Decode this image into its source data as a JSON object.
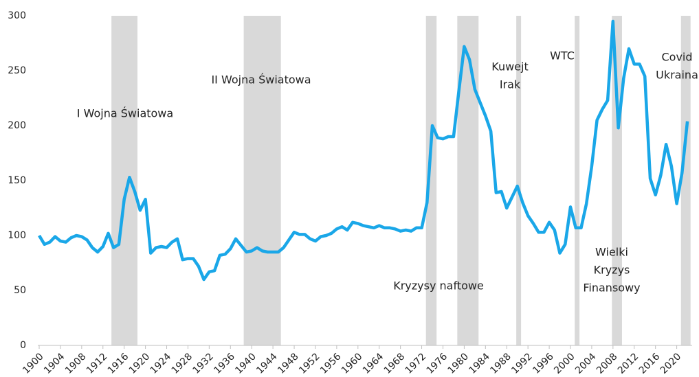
{
  "chart_data": {
    "type": "line",
    "x": [
      1900,
      1901,
      1902,
      1903,
      1904,
      1905,
      1906,
      1907,
      1908,
      1909,
      1910,
      1911,
      1912,
      1913,
      1914,
      1915,
      1916,
      1917,
      1918,
      1919,
      1920,
      1921,
      1922,
      1923,
      1924,
      1925,
      1926,
      1927,
      1928,
      1929,
      1930,
      1931,
      1932,
      1933,
      1934,
      1935,
      1936,
      1937,
      1938,
      1939,
      1940,
      1941,
      1942,
      1943,
      1944,
      1945,
      1946,
      1947,
      1948,
      1949,
      1950,
      1951,
      1952,
      1953,
      1954,
      1955,
      1956,
      1957,
      1958,
      1959,
      1960,
      1961,
      1962,
      1963,
      1964,
      1965,
      1966,
      1967,
      1968,
      1969,
      1970,
      1971,
      1972,
      1973,
      1974,
      1975,
      1976,
      1977,
      1978,
      1979,
      1980,
      1981,
      1982,
      1983,
      1984,
      1985,
      1986,
      1987,
      1988,
      1989,
      1990,
      1991,
      1992,
      1993,
      1994,
      1995,
      1996,
      1997,
      1998,
      1999,
      2000,
      2001,
      2002,
      2003,
      2004,
      2005,
      2006,
      2007,
      2008,
      2009,
      2010,
      2011,
      2012,
      2013,
      2014,
      2015,
      2016,
      2017,
      2018,
      2019,
      2020,
      2021,
      2022
    ],
    "values": [
      100,
      92,
      94,
      99,
      95,
      94,
      98,
      100,
      99,
      96,
      89,
      85,
      90,
      102,
      89,
      92,
      133,
      153,
      140,
      123,
      133,
      84,
      89,
      90,
      89,
      94,
      97,
      78,
      79,
      79,
      72,
      60,
      67,
      68,
      82,
      83,
      88,
      97,
      91,
      85,
      86,
      89,
      86,
      85,
      85,
      85,
      89,
      96,
      103,
      101,
      101,
      97,
      95,
      99,
      100,
      102,
      106,
      108,
      105,
      112,
      111,
      109,
      108,
      107,
      109,
      107,
      107,
      106,
      104,
      105,
      104,
      107,
      107,
      130,
      200,
      189,
      188,
      190,
      190,
      232,
      272,
      260,
      233,
      221,
      209,
      195,
      139,
      140,
      125,
      135,
      145,
      130,
      118,
      111,
      103,
      103,
      112,
      105,
      84,
      92,
      126,
      107,
      107,
      129,
      163,
      205,
      215,
      223,
      295,
      198,
      243,
      270,
      256,
      256,
      245,
      152,
      137,
      155,
      183,
      163,
      129,
      157,
      204
    ],
    "color": "#1aa7e8",
    "xlim": [
      1900,
      2022.5
    ],
    "xticks": [
      1900,
      1904,
      1908,
      1912,
      1916,
      1920,
      1924,
      1928,
      1932,
      1936,
      1940,
      1944,
      1948,
      1952,
      1956,
      1960,
      1964,
      1968,
      1972,
      1976,
      1980,
      1984,
      1988,
      1992,
      1996,
      2000,
      2004,
      2008,
      2012,
      2016,
      2020
    ],
    "ylim": [
      0,
      300
    ],
    "yticks": [
      0,
      50,
      100,
      150,
      200,
      250,
      300
    ],
    "grid": false,
    "shaded_periods": [
      [
        1913.6,
        1918.5
      ],
      [
        1938.5,
        1945.5
      ],
      [
        1972.8,
        1974.8
      ],
      [
        1978.7,
        1982.7
      ],
      [
        1989.8,
        1990.7
      ],
      [
        2000.8,
        2001.7
      ],
      [
        2007.8,
        2009.7
      ],
      [
        2020.8,
        2022.6
      ]
    ],
    "shade_color": "#d9d9d9",
    "annotations": [
      [
        "I Wojna Światowa"
      ],
      [
        "II Wojna Światowa"
      ],
      [
        "Kryzysy naftowe"
      ],
      [
        "Kuwejt",
        "Irak"
      ],
      [
        "WTC"
      ],
      [
        "Wielki",
        "Kryzys",
        "Finansowy"
      ],
      [
        "Covid",
        "Ukraina"
      ]
    ]
  }
}
